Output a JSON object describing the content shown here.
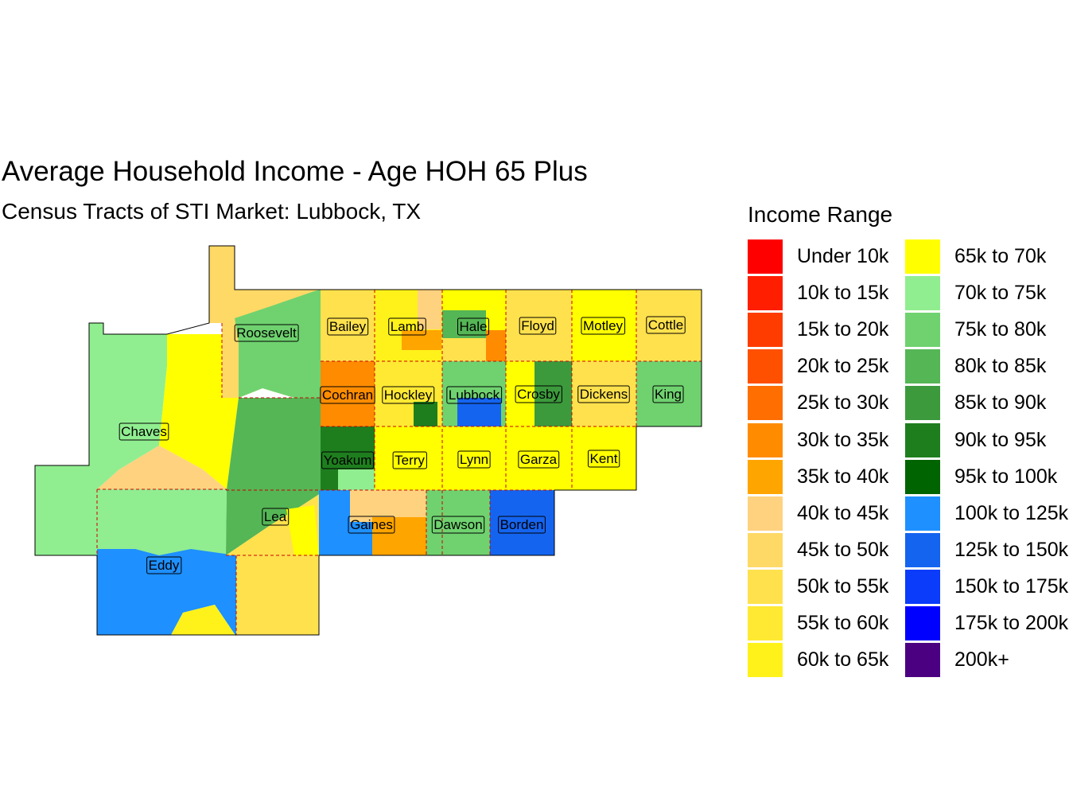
{
  "title": "Average Household Income - Age HOH 65 Plus",
  "subtitle": "Census Tracts of STI Market: Lubbock, TX",
  "legend": {
    "title": "Income Range",
    "items": [
      {
        "label": "Under 10k",
        "color": "#FF0000"
      },
      {
        "label": "10k to 15k",
        "color": "#FF1E00"
      },
      {
        "label": "15k to 20k",
        "color": "#FF3C00"
      },
      {
        "label": "20k to 25k",
        "color": "#FF5000"
      },
      {
        "label": "25k to 30k",
        "color": "#FF6E00"
      },
      {
        "label": "30k to 35k",
        "color": "#FF8C00"
      },
      {
        "label": "35k to 40k",
        "color": "#FFA500"
      },
      {
        "label": "40k to 45k",
        "color": "#FFD27F"
      },
      {
        "label": "45k to 50k",
        "color": "#FFD966"
      },
      {
        "label": "50k to 55k",
        "color": "#FFE14D"
      },
      {
        "label": "55k to 60k",
        "color": "#FFE933"
      },
      {
        "label": "60k to 65k",
        "color": "#FFF21A"
      },
      {
        "label": "65k to 70k",
        "color": "#FFFF00"
      },
      {
        "label": "70k to 75k",
        "color": "#90EE90"
      },
      {
        "label": "75k to 80k",
        "color": "#6FD26F"
      },
      {
        "label": "80k to 85k",
        "color": "#55B655"
      },
      {
        "label": "85k to 90k",
        "color": "#3C9A3C"
      },
      {
        "label": "90k to 95k",
        "color": "#1E7E1E"
      },
      {
        "label": "95k to 100k",
        "color": "#006400"
      },
      {
        "label": "100k to 125k",
        "color": "#1E90FF"
      },
      {
        "label": "125k to 150k",
        "color": "#1464F0"
      },
      {
        "label": "150k to 175k",
        "color": "#0A3CFA"
      },
      {
        "label": "175k to 200k",
        "color": "#0000FF"
      },
      {
        "label": "200k+",
        "color": "#4B0082"
      }
    ]
  },
  "counties": [
    "Roosevelt",
    "Bailey",
    "Lamb",
    "Hale",
    "Floyd",
    "Motley",
    "Cottle",
    "Cochran",
    "Hockley",
    "Lubbock",
    "Crosby",
    "Dickens",
    "King",
    "Chaves",
    "Yoakum",
    "Terry",
    "Lynn",
    "Garza",
    "Kent",
    "Lea",
    "Gaines",
    "Dawson",
    "Borden",
    "Eddy"
  ]
}
